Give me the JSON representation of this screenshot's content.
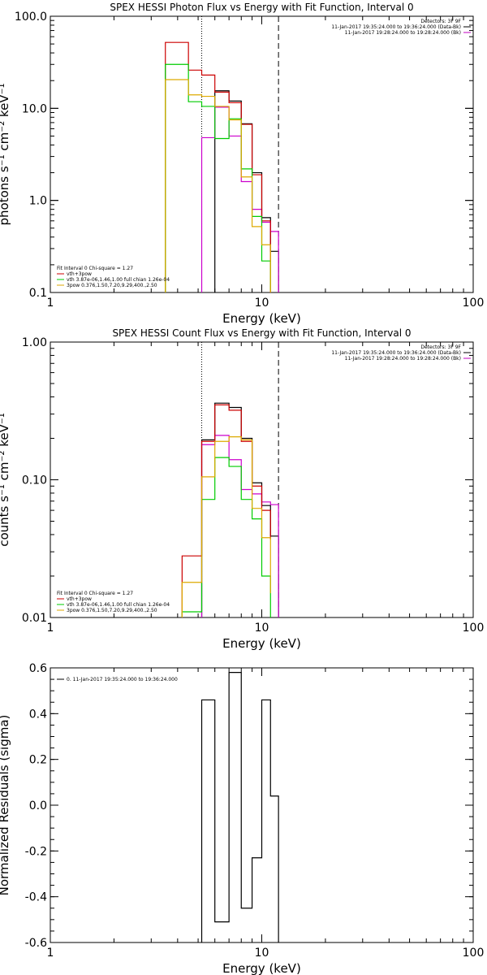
{
  "chart_data": [
    {
      "type": "line",
      "title": "SPEX HESSI Photon Flux vs Energy with Fit Function, Interval 0",
      "xlabel": "Energy (keV)",
      "ylabel": "photons s⁻¹ cm⁻² keV⁻¹",
      "xscale": "log",
      "yscale": "log",
      "xlim": [
        1,
        100
      ],
      "ylim": [
        0.1,
        100
      ],
      "xticks": [
        "1",
        "10",
        "100"
      ],
      "yticks": [
        "0.1",
        "1.0",
        "10.0",
        "100.0"
      ],
      "vlines": [
        {
          "x": 5.2,
          "style": "dotted"
        },
        {
          "x": 12.0,
          "style": "dashed"
        }
      ],
      "top_right_text": [
        "Detectors: 3F 9F",
        "11-Jan-2017 19:35:24.000 to 19:36:24.000 (Data-Bk)",
        "11-Jan-2017 19:28:24.000 to 19:28:24.000 (Bk)"
      ],
      "top_right_colors": [
        "#000000",
        "#c000c0"
      ],
      "legend_title": "Fit Interval 0   Chi-square = 1.27",
      "legend": [
        {
          "label": "vth+3pow",
          "color": "#cc0000"
        },
        {
          "label": "vth 3.87e-06,1.46,1.00  full chian 1.26e-04",
          "color": "#00cc00"
        },
        {
          "label": "3pow 0.376,1.50,7.20,9.29,400.,2.50",
          "color": "#ddaa00"
        }
      ],
      "series": [
        {
          "color": "#000000",
          "edges": [
            6,
            7,
            8,
            9,
            10,
            11,
            12
          ],
          "values": [
            15.5,
            12,
            6.8,
            2.0,
            0.65,
            0.28
          ]
        },
        {
          "color": "#cc00cc",
          "edges": [
            5.2,
            6,
            7,
            8,
            9,
            10,
            11,
            12
          ],
          "values": [
            4.8,
            10.3,
            5.0,
            1.6,
            0.8,
            0.58,
            0.46
          ]
        },
        {
          "color": "#cc0000",
          "edges": [
            3.5,
            4.5,
            5.2,
            6,
            7,
            8,
            9,
            10,
            11
          ],
          "values": [
            52,
            26,
            23,
            15,
            11.5,
            6.7,
            1.9,
            0.6
          ]
        },
        {
          "color": "#00cc00",
          "edges": [
            3.5,
            4.5,
            5.2,
            6,
            7,
            8,
            9,
            10,
            11
          ],
          "values": [
            30,
            11.8,
            10.5,
            4.7,
            7.7,
            2.2,
            0.67,
            0.22,
            0.105
          ]
        },
        {
          "color": "#ddaa00",
          "edges": [
            3.5,
            4.5,
            5.2,
            6,
            7,
            8,
            9,
            10,
            11
          ],
          "values": [
            20.5,
            14,
            13.5,
            10.5,
            7.5,
            1.8,
            0.52,
            0.33,
            0.1
          ]
        }
      ]
    },
    {
      "type": "line",
      "title": "SPEX HESSI Count Flux vs Energy with Fit Function, Interval 0",
      "xlabel": "Energy (keV)",
      "ylabel": "counts s⁻¹ cm⁻² keV⁻¹",
      "xscale": "log",
      "yscale": "log",
      "xlim": [
        1,
        100
      ],
      "ylim": [
        0.01,
        1.0
      ],
      "xticks": [
        "1",
        "10",
        "100"
      ],
      "yticks": [
        "0.01",
        "0.10",
        "1.00"
      ],
      "vlines": [
        {
          "x": 5.2,
          "style": "dotted"
        },
        {
          "x": 12.0,
          "style": "dashed"
        }
      ],
      "top_right_text": [
        "Detectors: 3F 9F",
        "11-Jan-2017 19:35:24.000 to 19:36:24.000 (Data-Bk)",
        "11-Jan-2017 19:28:24.000 to 19:28:24.000 (Bk)"
      ],
      "top_right_colors": [
        "#000000",
        "#c000c0"
      ],
      "legend_title": "Fit Interval 0   Chi-square = 1.27",
      "legend": [
        {
          "label": "vth+3pow",
          "color": "#cc0000"
        },
        {
          "label": "vth 3.87e-06,1.46,1.00  full chian 1.26e-04",
          "color": "#00cc00"
        },
        {
          "label": "3pow 0.376,1.50,7.20,9.29,400.,2.50",
          "color": "#ddaa00"
        }
      ],
      "series": [
        {
          "color": "#000000",
          "edges": [
            5.2,
            6,
            7,
            8,
            9,
            10,
            11,
            12
          ],
          "values": [
            0.195,
            0.36,
            0.335,
            0.2,
            0.095,
            0.065,
            0.039
          ]
        },
        {
          "color": "#cc00cc",
          "edges": [
            5.2,
            6,
            7,
            8,
            9,
            10,
            11,
            12
          ],
          "values": [
            0.18,
            0.21,
            0.14,
            0.085,
            0.079,
            0.069,
            0.066
          ]
        },
        {
          "color": "#cc0000",
          "edges": [
            4.2,
            5.2,
            6,
            7,
            8,
            9,
            10,
            11
          ],
          "values": [
            0.028,
            0.19,
            0.35,
            0.32,
            0.19,
            0.09,
            0.06,
            0.037
          ]
        },
        {
          "color": "#00cc00",
          "edges": [
            4.2,
            5.2,
            6,
            7,
            8,
            9,
            10,
            11
          ],
          "values": [
            0.011,
            0.072,
            0.145,
            0.125,
            0.072,
            0.052,
            0.02
          ]
        },
        {
          "color": "#ddaa00",
          "edges": [
            4.2,
            5.2,
            6,
            7,
            8,
            9,
            10,
            11
          ],
          "values": [
            0.018,
            0.105,
            0.19,
            0.205,
            0.195,
            0.062,
            0.038,
            0.015
          ]
        }
      ]
    },
    {
      "type": "line",
      "title": "",
      "xlabel": "Energy (keV)",
      "ylabel": "Normalized Residuals (sigma)",
      "xscale": "log",
      "yscale": "linear",
      "xlim": [
        1,
        100
      ],
      "ylim": [
        -0.6,
        0.6
      ],
      "xticks": [
        "1",
        "10",
        "100"
      ],
      "yticks": [
        "-0.6",
        "-0.4",
        "-0.2",
        "0.0",
        "0.2",
        "0.4",
        "0.6"
      ],
      "legend": [
        {
          "label": "0. 11-Jan-2017 19:35:24.000 to 19:36:24.000",
          "color": "#000000"
        }
      ],
      "series": [
        {
          "color": "#000000",
          "edges": [
            5.2,
            6,
            7,
            8,
            9,
            10,
            11,
            12
          ],
          "values": [
            0.46,
            -0.51,
            0.58,
            -0.45,
            -0.23,
            0.46,
            0.04
          ]
        }
      ]
    }
  ]
}
